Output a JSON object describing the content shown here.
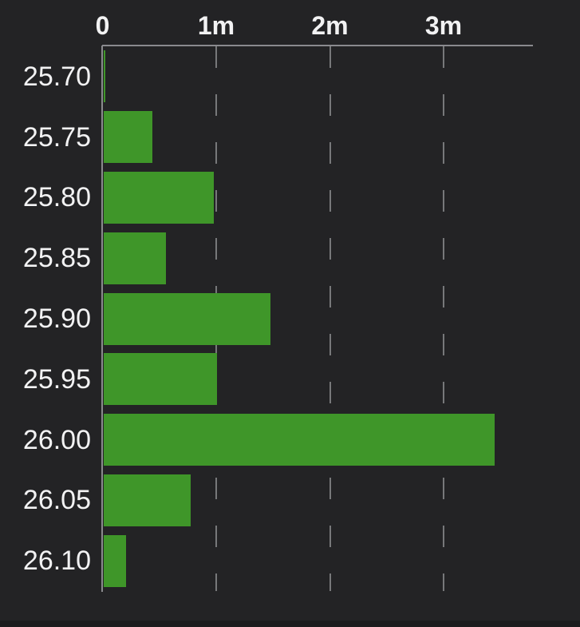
{
  "chart_data": {
    "type": "bar",
    "orientation": "horizontal",
    "categories": [
      "25.70",
      "25.75",
      "25.80",
      "25.85",
      "25.90",
      "25.95",
      "26.00",
      "26.05",
      "26.10"
    ],
    "values": [
      0.02,
      0.43,
      0.97,
      0.55,
      1.47,
      1.0,
      3.44,
      0.77,
      0.2
    ],
    "values_unit": "millions",
    "title": "",
    "xlabel": "",
    "ylabel": "",
    "x_axis": {
      "position": "top",
      "tick_labels": [
        "0",
        "1m",
        "2m",
        "3m"
      ],
      "tick_values": [
        0,
        1,
        2,
        3
      ],
      "max": 3.79,
      "grid": "dashed-vertical"
    },
    "y_axis": {
      "position": "left",
      "tick_labels": [
        "25.70",
        "25.75",
        "25.80",
        "25.85",
        "25.90",
        "25.95",
        "26.00",
        "26.05",
        "26.10"
      ]
    },
    "legend": "none",
    "bar_color": "#3F9629"
  },
  "colors": {
    "background": "#232325",
    "bottom_strip": "#1B1B1D",
    "bar": "#3F9629",
    "axis_line": "#8A8A8E",
    "gridline": "#77787A",
    "label_text": "#F2F2F3"
  }
}
